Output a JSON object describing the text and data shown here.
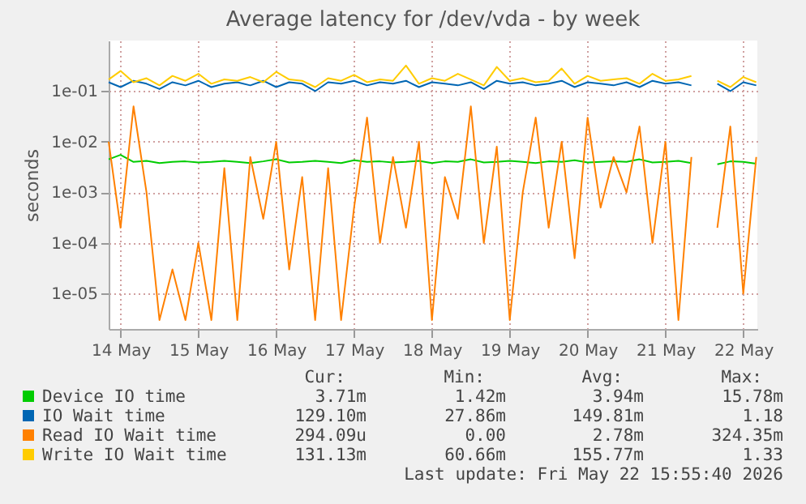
{
  "chart_data": {
    "type": "line",
    "title": "Average latency for /dev/vda - by week",
    "ylabel": "seconds",
    "x": [
      "2026-05-14T08:20",
      "2026-05-14T12:00",
      "2026-05-14T16:00",
      "2026-05-14T20:00",
      "2026-05-15T00:00",
      "2026-05-15T04:00",
      "2026-05-15T08:00",
      "2026-05-15T12:00",
      "2026-05-15T16:00",
      "2026-05-15T20:00",
      "2026-05-16T00:00",
      "2026-05-16T04:00",
      "2026-05-16T08:00",
      "2026-05-16T12:00",
      "2026-05-16T16:00",
      "2026-05-16T20:00",
      "2026-05-17T00:00",
      "2026-05-17T04:00",
      "2026-05-17T08:00",
      "2026-05-17T12:00",
      "2026-05-17T16:00",
      "2026-05-17T20:00",
      "2026-05-18T00:00",
      "2026-05-18T04:00",
      "2026-05-18T08:00",
      "2026-05-18T12:00",
      "2026-05-18T16:00",
      "2026-05-18T20:00",
      "2026-05-19T00:00",
      "2026-05-19T04:00",
      "2026-05-19T08:00",
      "2026-05-19T12:00",
      "2026-05-19T16:00",
      "2026-05-19T20:00",
      "2026-05-20T00:00",
      "2026-05-20T04:00",
      "2026-05-20T08:00",
      "2026-05-20T12:00",
      "2026-05-20T16:00",
      "2026-05-20T20:00",
      "2026-05-21T00:00",
      "2026-05-21T04:00",
      "2026-05-21T08:00",
      "2026-05-21T12:00",
      "2026-05-21T16:00",
      "2026-05-21T20:00",
      "2026-05-22T00:00",
      "2026-05-22T04:00",
      "2026-05-22T08:00",
      "2026-05-22T12:00",
      "2026-05-22T16:00"
    ],
    "series": [
      {
        "name": "Device IO time",
        "color": "#00cc00",
        "values": [
          0.0045,
          0.0055,
          0.004,
          0.0042,
          0.0038,
          0.004,
          0.0041,
          0.0039,
          0.004,
          0.0042,
          0.004,
          0.0038,
          0.0041,
          0.0045,
          0.0039,
          0.004,
          0.0042,
          0.004,
          0.0038,
          0.0043,
          0.004,
          0.0041,
          0.0039,
          0.004,
          0.0042,
          0.0038,
          0.0041,
          0.004,
          0.0045,
          0.0039,
          0.004,
          0.0042,
          0.004,
          0.0038,
          0.0041,
          0.004,
          0.0043,
          0.0039,
          0.004,
          0.0041,
          0.004,
          0.0045,
          0.0039,
          0.004,
          0.0042,
          0.0038,
          null,
          0.0036,
          0.0041,
          0.004,
          0.0037
        ]
      },
      {
        "name": "IO Wait time",
        "color": "#0066b3",
        "values": [
          0.15,
          0.12,
          0.16,
          0.14,
          0.11,
          0.15,
          0.13,
          0.16,
          0.12,
          0.14,
          0.15,
          0.13,
          0.16,
          0.12,
          0.15,
          0.14,
          0.1,
          0.15,
          0.14,
          0.16,
          0.13,
          0.15,
          0.14,
          0.16,
          0.12,
          0.15,
          0.14,
          0.13,
          0.15,
          0.11,
          0.16,
          0.14,
          0.15,
          0.13,
          0.14,
          0.16,
          0.12,
          0.15,
          0.14,
          0.13,
          0.15,
          0.12,
          0.16,
          0.14,
          0.15,
          0.13,
          null,
          0.14,
          0.1,
          0.15,
          0.13
        ]
      },
      {
        "name": "Read IO Wait time",
        "color": "#ff8000",
        "values": [
          0.01,
          0.0002,
          0.05,
          0.001,
          3e-06,
          3e-05,
          3e-06,
          0.0001,
          3e-06,
          0.003,
          3e-06,
          0.005,
          0.0003,
          0.01,
          3e-05,
          0.002,
          3e-06,
          0.003,
          3e-06,
          0.0005,
          0.03,
          0.0001,
          0.005,
          0.0002,
          0.01,
          3e-06,
          0.002,
          0.0003,
          0.05,
          0.0001,
          0.008,
          3e-06,
          0.001,
          0.03,
          0.0002,
          0.01,
          5e-05,
          0.03,
          0.0005,
          0.005,
          0.001,
          0.02,
          0.0001,
          0.01,
          3e-06,
          0.005,
          null,
          0.0002,
          0.02,
          1e-05,
          0.005
        ]
      },
      {
        "name": "Write IO Wait time",
        "color": "#ffcc00",
        "values": [
          0.17,
          0.25,
          0.15,
          0.18,
          0.13,
          0.2,
          0.16,
          0.22,
          0.14,
          0.17,
          0.16,
          0.19,
          0.15,
          0.24,
          0.17,
          0.16,
          0.12,
          0.18,
          0.16,
          0.21,
          0.15,
          0.17,
          0.16,
          0.32,
          0.14,
          0.18,
          0.16,
          0.22,
          0.17,
          0.13,
          0.3,
          0.16,
          0.18,
          0.15,
          0.16,
          0.28,
          0.14,
          0.2,
          0.16,
          0.17,
          0.18,
          0.14,
          0.22,
          0.16,
          0.17,
          0.2,
          null,
          0.16,
          0.12,
          0.19,
          0.15
        ]
      }
    ],
    "xlim": [
      "2026-05-14T08:20",
      "2026-05-22T16:20"
    ],
    "xticks": [
      {
        "value": "2026-05-14T12:00",
        "label": "14 May"
      },
      {
        "value": "2026-05-15T12:00",
        "label": "15 May"
      },
      {
        "value": "2026-05-16T12:00",
        "label": "16 May"
      },
      {
        "value": "2026-05-17T12:00",
        "label": "17 May"
      },
      {
        "value": "2026-05-18T12:00",
        "label": "18 May"
      },
      {
        "value": "2026-05-19T12:00",
        "label": "19 May"
      },
      {
        "value": "2026-05-20T12:00",
        "label": "20 May"
      },
      {
        "value": "2026-05-21T12:00",
        "label": "21 May"
      },
      {
        "value": "2026-05-22T12:00",
        "label": "22 May"
      }
    ],
    "ylim": [
      2e-06,
      1
    ],
    "yticks": [
      {
        "value": 1e-05,
        "label": "1e-05"
      },
      {
        "value": 0.0001,
        "label": "1e-04"
      },
      {
        "value": 0.001,
        "label": "1e-03"
      },
      {
        "value": 0.01,
        "label": "1e-02"
      },
      {
        "value": 0.1,
        "label": "1e-01"
      }
    ],
    "log": "y",
    "grid": true,
    "legend": "bottom",
    "annotations": [
      "Cur:",
      "Min:",
      "Avg:",
      "Max:",
      "3.71m",
      "1.42m",
      "3.94m",
      "15.78m",
      "129.10m",
      "27.86m",
      "149.81m",
      "1.18",
      "294.09u",
      "0.00",
      "2.78m",
      "324.35m",
      "131.13m",
      "60.66m",
      "155.77m",
      "1.33",
      "Last update: Fri May 22 15:55:40 2026"
    ]
  }
}
